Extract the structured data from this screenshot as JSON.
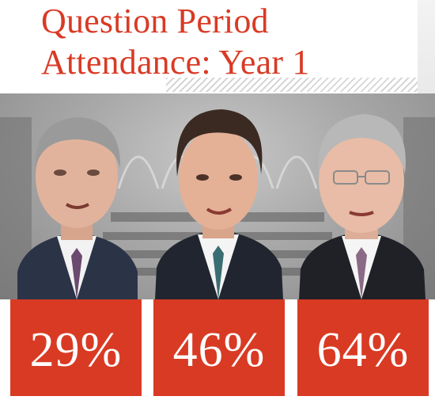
{
  "header": {
    "title_line_1": "Question Period",
    "title_line_2": "Attendance: Year 1"
  },
  "colors": {
    "accent_red": "#d93a24",
    "bar_text": "#ffffff",
    "background": "#ffffff"
  },
  "chart_data": {
    "type": "bar",
    "title": "Question Period Attendance: Year 1",
    "unit": "%",
    "categories": [
      "",
      "",
      ""
    ],
    "values": [
      29,
      46,
      64
    ],
    "value_labels": [
      "29%",
      "46%",
      "64%"
    ],
    "portraits": [
      "portrait-left",
      "portrait-center",
      "portrait-right"
    ]
  },
  "bars": [
    {
      "label": "29%"
    },
    {
      "label": "46%"
    },
    {
      "label": "64%"
    }
  ]
}
